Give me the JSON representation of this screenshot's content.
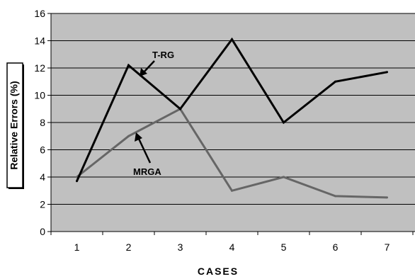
{
  "chart_data": {
    "type": "line",
    "categories": [
      "1",
      "2",
      "3",
      "4",
      "5",
      "6",
      "7"
    ],
    "series": [
      {
        "name": "T-RG",
        "color": "#000000",
        "values": [
          3.7,
          12.2,
          9.0,
          14.1,
          8.0,
          11.0,
          11.7
        ]
      },
      {
        "name": "MRGA",
        "color": "#666666",
        "values": [
          4.0,
          7.0,
          9.0,
          3.0,
          4.0,
          2.6,
          2.5
        ]
      }
    ],
    "title": "",
    "xlabel": "CASES",
    "ylabel": "Relative Errors (%)",
    "ylim": [
      0,
      16
    ],
    "yticks": [
      0,
      2,
      4,
      6,
      8,
      10,
      12,
      14,
      16
    ],
    "grid": true,
    "plot_background": "#c0c0c0",
    "legend": "none (series labelled by arrow annotations)",
    "annotations": [
      {
        "text": "T-RG",
        "series": "T-RG",
        "points_to_category": "2"
      },
      {
        "text": "MRGA",
        "series": "MRGA",
        "points_to_category": "2"
      }
    ]
  }
}
